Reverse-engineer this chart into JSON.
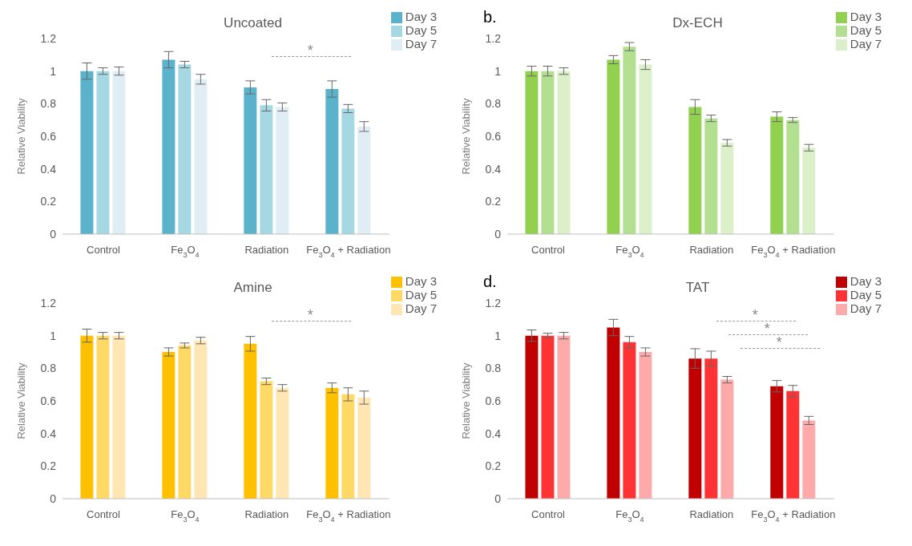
{
  "chart_data": [
    {
      "type": "bar",
      "title": "Uncoated",
      "ylabel": "Relative Viability",
      "categories": [
        "Control",
        "Fe$_{3}$O$_{4}$",
        "Radiation",
        "Fe$_{3}$O$_{4}$ + Radiation"
      ],
      "ylim": [
        0,
        1.2
      ],
      "yticks": [
        0,
        0.2,
        0.4,
        0.6,
        0.8,
        1,
        1.2
      ],
      "grid": false,
      "legend": "top right",
      "series": [
        {
          "name": "Day 3",
          "color": "#5bb3cb",
          "values": [
            1.0,
            1.07,
            0.9,
            0.89
          ],
          "errors": [
            0.05,
            0.05,
            0.04,
            0.05
          ]
        },
        {
          "name": "Day 5",
          "color": "#a6d8e3",
          "values": [
            1.0,
            1.04,
            0.79,
            0.77
          ],
          "errors": [
            0.02,
            0.02,
            0.035,
            0.025
          ]
        },
        {
          "name": "Day 7",
          "color": "#e0edf4",
          "values": [
            1.0,
            0.95,
            0.78,
            0.66
          ],
          "errors": [
            0.025,
            0.03,
            0.025,
            0.03
          ]
        }
      ],
      "annotations": [
        "*"
      ]
    },
    {
      "type": "bar",
      "title": "Dx-ECH",
      "ylabel": "Relative Viability",
      "categories": [
        "Control",
        "Fe$_{3}$O$_{4}$",
        "Radiation",
        "Fe$_{3}$O$_{4}$ + Radiation"
      ],
      "ylim": [
        0,
        1.2
      ],
      "yticks": [
        0,
        0.2,
        0.4,
        0.6,
        0.8,
        1,
        1.2
      ],
      "grid": false,
      "legend": "top right",
      "series": [
        {
          "name": "Day 3",
          "color": "#92d050",
          "values": [
            1.0,
            1.07,
            0.78,
            0.72
          ],
          "errors": [
            0.03,
            0.025,
            0.045,
            0.03
          ]
        },
        {
          "name": "Day 5",
          "color": "#b3e090",
          "values": [
            1.0,
            1.15,
            0.71,
            0.7
          ],
          "errors": [
            0.03,
            0.025,
            0.02,
            0.015
          ]
        },
        {
          "name": "Day 7",
          "color": "#dbefc8",
          "values": [
            1.0,
            1.04,
            0.56,
            0.53
          ],
          "errors": [
            0.02,
            0.03,
            0.02,
            0.02
          ]
        }
      ],
      "subtitle": "b."
    },
    {
      "type": "bar",
      "title": "Amine",
      "ylabel": "Relative Viability",
      "categories": [
        "Control",
        "Fe$_{3}$O$_{4}$",
        "Radiation",
        "Fe$_{3}$O$_{4}$ + Radiation"
      ],
      "ylim": [
        0,
        1.2
      ],
      "yticks": [
        0,
        0.2,
        0.4,
        0.6,
        0.8,
        1,
        1.2
      ],
      "grid": false,
      "legend": "top right",
      "series": [
        {
          "name": "Day 3",
          "color": "#ffc000",
          "values": [
            1.0,
            0.9,
            0.95,
            0.68
          ],
          "errors": [
            0.04,
            0.025,
            0.045,
            0.03
          ]
        },
        {
          "name": "Day 5",
          "color": "#ffd966",
          "values": [
            1.0,
            0.94,
            0.72,
            0.64
          ],
          "errors": [
            0.02,
            0.015,
            0.02,
            0.04
          ]
        },
        {
          "name": "Day 7",
          "color": "#ffe6b3",
          "values": [
            1.0,
            0.97,
            0.68,
            0.62
          ],
          "errors": [
            0.02,
            0.02,
            0.02,
            0.04
          ]
        }
      ],
      "annotations": [
        "*"
      ]
    },
    {
      "type": "bar",
      "title": "TAT",
      "ylabel": "Relative Viability",
      "categories": [
        "Control",
        "Fe$_{3}$O$_{4}$",
        "Radiation",
        "Fe$_{3}$O$_{4}$ + Radiation"
      ],
      "ylim": [
        0,
        1.2
      ],
      "yticks": [
        0,
        0.2,
        0.4,
        0.6,
        0.8,
        1,
        1.2
      ],
      "grid": false,
      "legend": "top right",
      "series": [
        {
          "name": "Day 3",
          "color": "#c00000",
          "values": [
            1.0,
            1.05,
            0.86,
            0.69
          ],
          "errors": [
            0.035,
            0.05,
            0.06,
            0.035
          ]
        },
        {
          "name": "Day 5",
          "color": "#ff3333",
          "values": [
            1.0,
            0.96,
            0.86,
            0.66
          ],
          "errors": [
            0.015,
            0.035,
            0.045,
            0.035
          ]
        },
        {
          "name": "Day 7",
          "color": "#ffaaaa",
          "values": [
            1.0,
            0.9,
            0.73,
            0.48
          ],
          "errors": [
            0.02,
            0.025,
            0.02,
            0.025
          ]
        }
      ],
      "subtitle": "d.",
      "annotations": [
        "*",
        "*",
        "*"
      ]
    }
  ]
}
